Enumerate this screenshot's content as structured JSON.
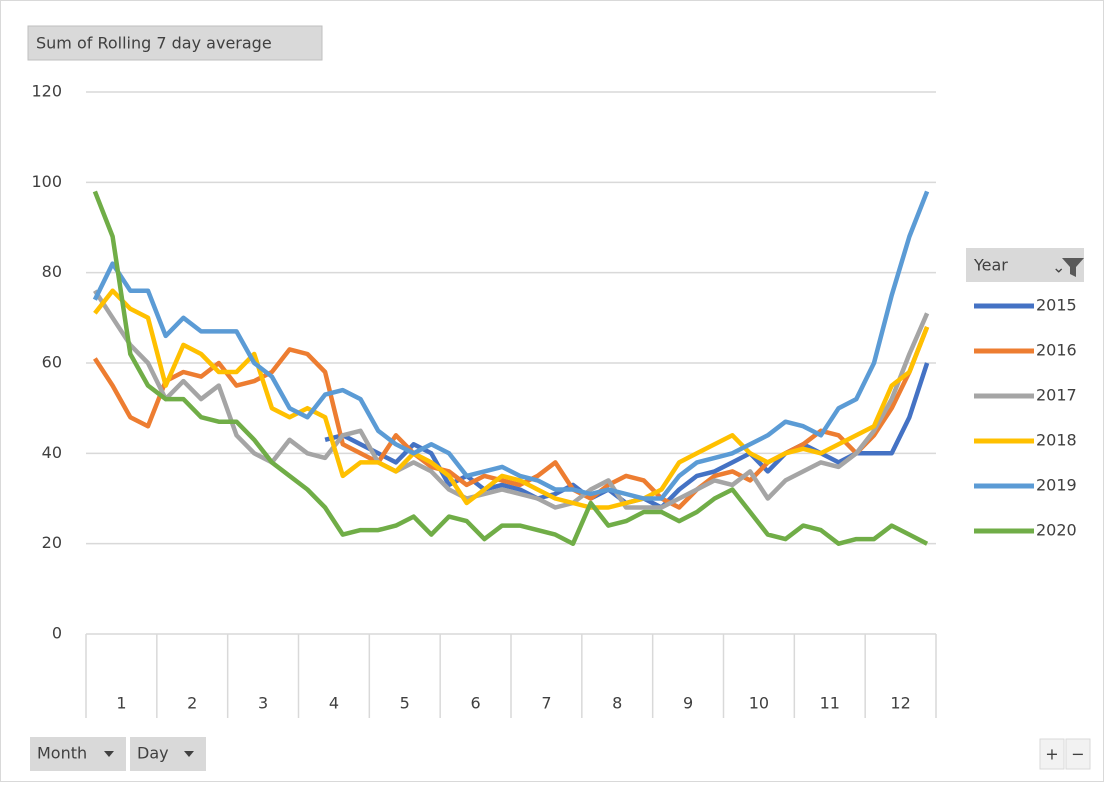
{
  "chart_data": {
    "type": "line",
    "title": "Sum of Rolling 7 day average",
    "legend_title": "Year",
    "field_buttons": [
      "Month",
      "Day"
    ],
    "zoom_buttons": [
      "+",
      "−"
    ],
    "month_labels": [
      "1",
      "2",
      "3",
      "4",
      "5",
      "6",
      "7",
      "8",
      "9",
      "10",
      "11",
      "12"
    ],
    "x": [
      0.125,
      0.375,
      0.625,
      0.875,
      1.125,
      1.375,
      1.625,
      1.875,
      2.125,
      2.375,
      2.625,
      2.875,
      3.125,
      3.375,
      3.625,
      3.875,
      4.125,
      4.375,
      4.625,
      4.875,
      5.125,
      5.375,
      5.625,
      5.875,
      6.125,
      6.375,
      6.625,
      6.875,
      7.125,
      7.375,
      7.625,
      7.875,
      8.125,
      8.375,
      8.625,
      8.875,
      9.125,
      9.375,
      9.625,
      9.875,
      10.125,
      10.375,
      10.625,
      10.875,
      11.125,
      11.375,
      11.625,
      11.875
    ],
    "xlim": [
      0,
      12
    ],
    "ylim": [
      0,
      120
    ],
    "yticks": [
      0,
      20,
      40,
      60,
      80,
      100,
      120
    ],
    "grid": true,
    "series": [
      {
        "name": "2015",
        "color": "#4472c4",
        "values": [
          null,
          null,
          null,
          null,
          null,
          null,
          null,
          null,
          null,
          null,
          null,
          null,
          null,
          43,
          44,
          42,
          40,
          38,
          42,
          40,
          33,
          35,
          32,
          33,
          32,
          30,
          31,
          33,
          30,
          32,
          29,
          30,
          28,
          32,
          35,
          36,
          38,
          40,
          36,
          40,
          42,
          40,
          38,
          40,
          40,
          40,
          48,
          60
        ]
      },
      {
        "name": "2016",
        "color": "#ed7d31",
        "values": [
          61,
          55,
          48,
          46,
          56,
          58,
          57,
          60,
          55,
          56,
          58,
          63,
          62,
          58,
          42,
          40,
          38,
          44,
          40,
          37,
          36,
          33,
          35,
          34,
          33,
          35,
          38,
          32,
          30,
          33,
          35,
          34,
          30,
          28,
          32,
          35,
          36,
          34,
          38,
          40,
          42,
          45,
          44,
          40,
          44,
          50,
          58,
          68
        ]
      },
      {
        "name": "2017",
        "color": "#a5a5a5",
        "values": [
          76,
          70,
          64,
          60,
          52,
          56,
          52,
          55,
          44,
          40,
          38,
          43,
          40,
          39,
          44,
          45,
          38,
          36,
          38,
          36,
          32,
          30,
          31,
          32,
          31,
          30,
          28,
          29,
          32,
          34,
          28,
          28,
          28,
          30,
          32,
          34,
          33,
          36,
          30,
          34,
          36,
          38,
          37,
          40,
          45,
          52,
          62,
          71
        ]
      },
      {
        "name": "2018",
        "color": "#ffc000",
        "values": [
          71,
          76,
          72,
          70,
          55,
          64,
          62,
          58,
          58,
          62,
          50,
          48,
          50,
          48,
          35,
          38,
          38,
          36,
          40,
          38,
          35,
          29,
          32,
          35,
          34,
          32,
          30,
          29,
          28,
          28,
          29,
          30,
          32,
          38,
          40,
          42,
          44,
          40,
          38,
          40,
          41,
          40,
          42,
          44,
          46,
          55,
          58,
          68
        ]
      },
      {
        "name": "2019",
        "color": "#5b9bd5",
        "values": [
          74,
          82,
          76,
          76,
          66,
          70,
          67,
          67,
          67,
          60,
          57,
          50,
          48,
          53,
          54,
          52,
          45,
          42,
          40,
          42,
          40,
          35,
          36,
          37,
          35,
          34,
          32,
          32,
          31,
          32,
          31,
          30,
          30,
          35,
          38,
          39,
          40,
          42,
          44,
          47,
          46,
          44,
          50,
          52,
          60,
          75,
          88,
          98
        ]
      },
      {
        "name": "2020",
        "color": "#70ad47",
        "values": [
          98,
          88,
          62,
          55,
          52,
          52,
          48,
          47,
          47,
          43,
          38,
          35,
          32,
          28,
          22,
          23,
          23,
          24,
          26,
          22,
          26,
          25,
          21,
          24,
          24,
          23,
          22,
          20,
          29,
          24,
          25,
          27,
          27,
          25,
          27,
          30,
          32,
          27,
          22,
          21,
          24,
          23,
          20,
          21,
          21,
          24,
          22,
          20
        ]
      }
    ]
  }
}
